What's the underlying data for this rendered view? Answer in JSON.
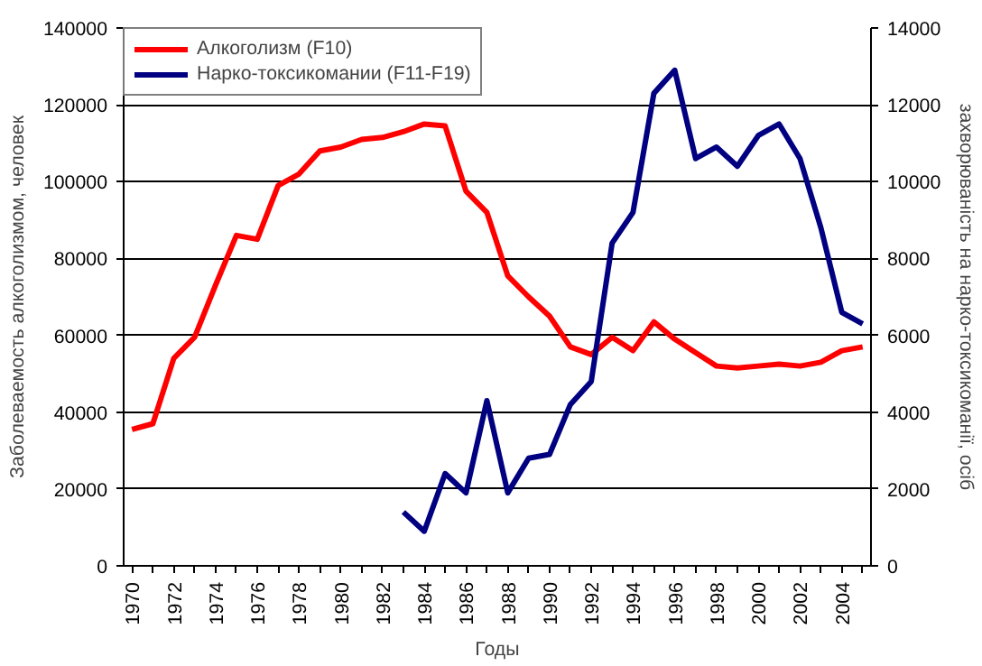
{
  "chart_data": {
    "type": "line",
    "xlabel": "Годы",
    "ylabel": "Заболеваемость алкоголизмом, человек",
    "y2label": "захворюваність на нарко-токсикоманії, осіб",
    "x": [
      1970,
      1971,
      1972,
      1973,
      1974,
      1975,
      1976,
      1977,
      1978,
      1979,
      1980,
      1981,
      1982,
      1983,
      1984,
      1985,
      1986,
      1987,
      1988,
      1989,
      1990,
      1991,
      1992,
      1993,
      1994,
      1995,
      1996,
      1997,
      1998,
      1999,
      2000,
      2001,
      2002,
      2003,
      2004,
      2005
    ],
    "series": [
      {
        "name": "Алкоголизм (F10)",
        "color": "#ff0000",
        "values": [
          35500,
          37000,
          54000,
          59500,
          73000,
          86000,
          85000,
          99000,
          102000,
          108000,
          109000,
          111000,
          111500,
          113000,
          115000,
          114500,
          97500,
          92000,
          75500,
          70000,
          65000,
          57000,
          55000,
          59500,
          56000,
          63500,
          59000,
          55500,
          52000,
          51500,
          52000,
          52500,
          52000,
          53000,
          56000,
          57000
        ]
      },
      {
        "name": "Нарко-токсикомании (F11-F19)",
        "color": "#000080",
        "axis": "y2",
        "values": [
          null,
          null,
          null,
          null,
          null,
          null,
          null,
          null,
          null,
          null,
          null,
          null,
          null,
          1400,
          900,
          2400,
          1900,
          4300,
          1900,
          2800,
          2900,
          4200,
          4800,
          8400,
          9200,
          12300,
          12900,
          10600,
          10900,
          10400,
          11200,
          11500,
          10600,
          8800,
          6600,
          6300
        ]
      }
    ],
    "xlim": [
      1969.6,
      2005.4
    ],
    "xticks": [
      1970,
      {
        "value": 1971,
        "label": null
      },
      1972,
      {
        "value": 1973,
        "label": null
      },
      1974,
      {
        "value": 1975,
        "label": null
      },
      1976,
      {
        "value": 1977,
        "label": null
      },
      1978,
      {
        "value": 1979,
        "label": null
      },
      1980,
      {
        "value": 1981,
        "label": null
      },
      1982,
      {
        "value": 1983,
        "label": null
      },
      1984,
      {
        "value": 1985,
        "label": null
      },
      1986,
      {
        "value": 1987,
        "label": null
      },
      1988,
      {
        "value": 1989,
        "label": null
      },
      1990,
      {
        "value": 1991,
        "label": null
      },
      1992,
      {
        "value": 1993,
        "label": null
      },
      1994,
      {
        "value": 1995,
        "label": null
      },
      1996,
      {
        "value": 1997,
        "label": null
      },
      1998,
      {
        "value": 1999,
        "label": null
      },
      2000,
      {
        "value": 2001,
        "label": null
      },
      2002,
      {
        "value": 2003,
        "label": null
      },
      2004,
      {
        "value": 2005,
        "label": null
      }
    ],
    "ylim": [
      0,
      140000
    ],
    "yticks": [
      0,
      20000,
      40000,
      60000,
      80000,
      100000,
      120000,
      140000
    ],
    "y2lim": [
      0,
      14000
    ],
    "y2ticks": [
      0,
      2000,
      4000,
      6000,
      8000,
      10000,
      12000,
      14000
    ],
    "grid": "y",
    "legend": "top left",
    "marker": "none",
    "line_style": "solid"
  }
}
